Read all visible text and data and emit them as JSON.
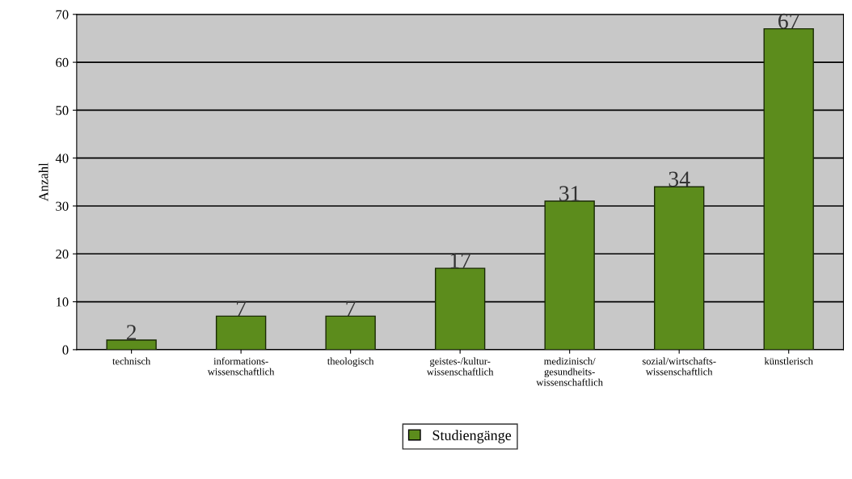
{
  "chart_data": {
    "type": "bar",
    "ylabel": "Anzahl",
    "categories": [
      "technisch",
      "informations-\nwissenschaftlich",
      "theologisch",
      "geistes-/kultur-\nwissenschaftlich",
      "medizinisch/\ngesundheits-\nwissenschaftlich",
      "sozial/wirtschafts-\nwissenschaftlich",
      "künstlerisch"
    ],
    "series": [
      {
        "name": "Studiengänge",
        "color": "#5c8c1c",
        "values": [
          2,
          7,
          7,
          17,
          31,
          34,
          67
        ]
      }
    ],
    "ylim": [
      0,
      70
    ],
    "yticks": [
      0,
      10,
      20,
      30,
      40,
      50,
      60,
      70
    ],
    "grid": "y",
    "legend": "bottom",
    "data_labels": true
  }
}
